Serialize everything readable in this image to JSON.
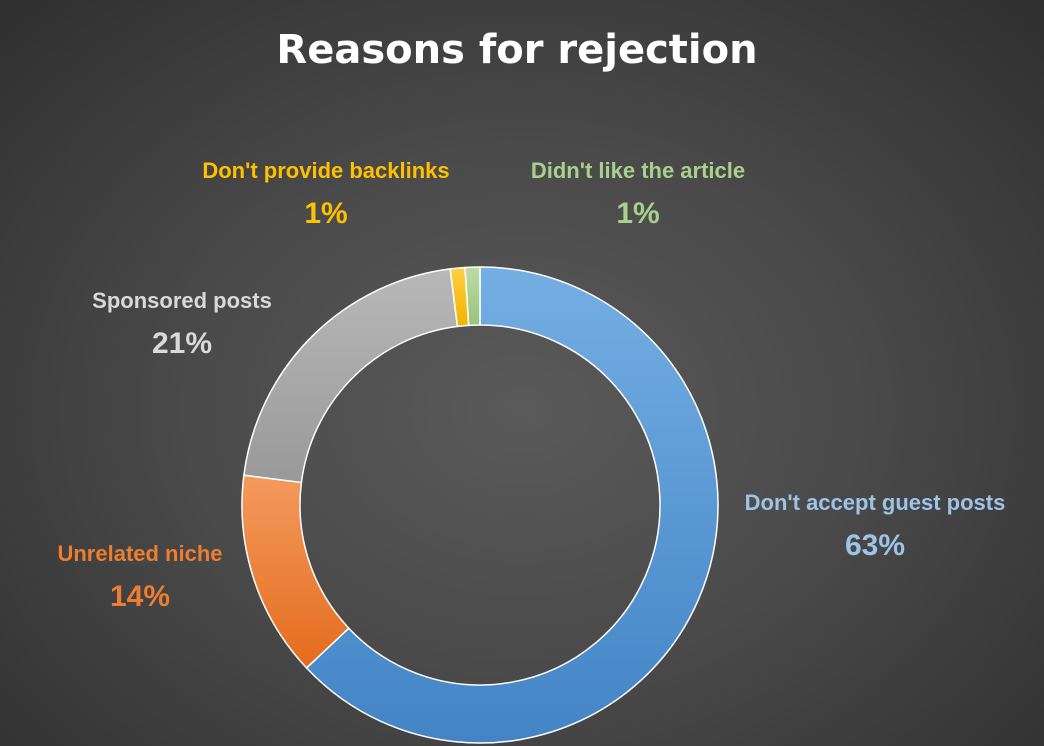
{
  "chart_data": {
    "type": "donut",
    "title": "Reasons for rejection",
    "slices": [
      {
        "name": "Don't accept guest posts",
        "label": "63%",
        "value": 63,
        "color": "#5b9bd5",
        "label_color": "#9dc3e6"
      },
      {
        "name": "Unrelated niche",
        "label": "14%",
        "value": 14,
        "color": "#ed7d31",
        "label_color": "#ed7d31"
      },
      {
        "name": "Sponsored posts",
        "label": "21%",
        "value": 21,
        "color": "#a5a5a5",
        "label_color": "#d9d9d9"
      },
      {
        "name": "Don't provide backlinks",
        "label": "1%",
        "value": 1,
        "color": "#ffc000",
        "label_color": "#ffc000"
      },
      {
        "name": "Didn't like the article",
        "label": "1%",
        "value": 1,
        "color": "#a9d18e",
        "label_color": "#a9d18e"
      }
    ],
    "legend": "none",
    "data_labels": "outside"
  }
}
